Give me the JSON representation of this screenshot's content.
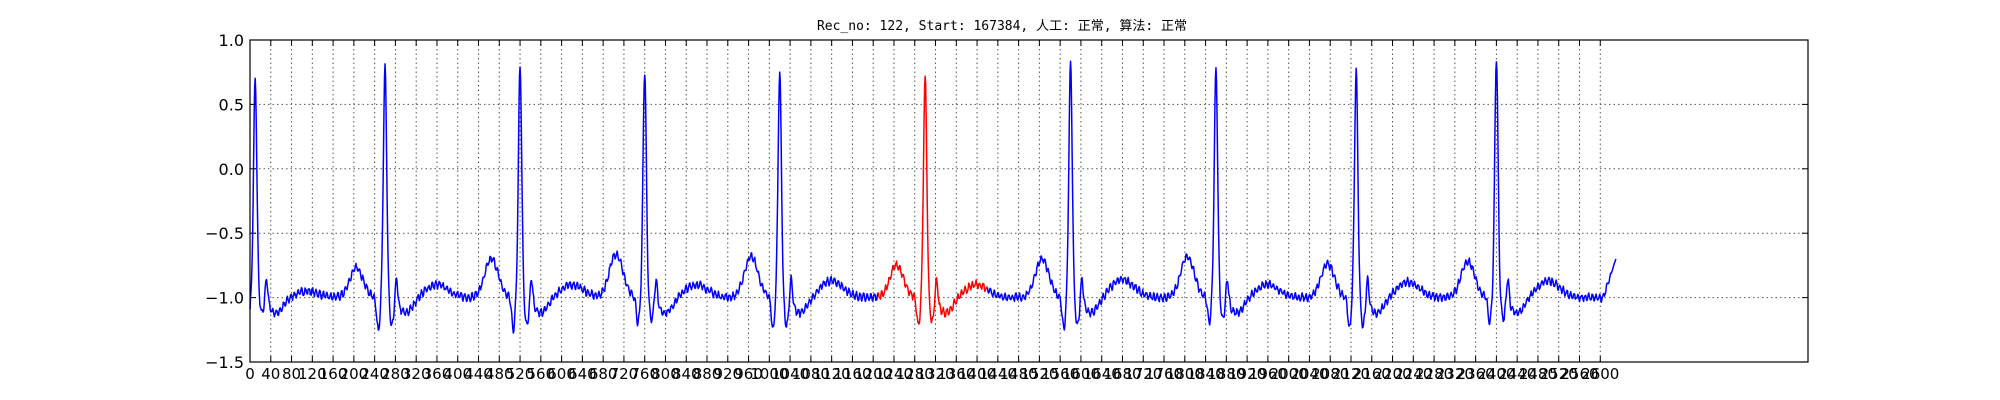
{
  "chart_data": {
    "type": "line",
    "title": "Rec_no: 122, Start: 167384, 人工: 正常, 算法: 正常",
    "xlabel": "",
    "ylabel": "",
    "xlim": [
      0,
      3000
    ],
    "ylim": [
      -1.5,
      1.0
    ],
    "grid": true,
    "yticks": [
      {
        "value": 1.0,
        "label": "1.0"
      },
      {
        "value": 0.5,
        "label": "0.5"
      },
      {
        "value": 0.0,
        "label": "0.0"
      },
      {
        "value": -0.5,
        "label": "−0.5"
      },
      {
        "value": -1.0,
        "label": "−1.0"
      },
      {
        "value": -1.5,
        "label": "−1.5"
      }
    ],
    "xticks": [
      {
        "value": 0,
        "label": "0"
      },
      {
        "value": 40,
        "label": "40"
      },
      {
        "value": 80,
        "label": "80"
      },
      {
        "value": 120,
        "label": "120"
      },
      {
        "value": 160,
        "label": "160"
      },
      {
        "value": 200,
        "label": "200"
      },
      {
        "value": 240,
        "label": "240"
      },
      {
        "value": 280,
        "label": "280"
      },
      {
        "value": 320,
        "label": "320"
      },
      {
        "value": 360,
        "label": "360"
      },
      {
        "value": 400,
        "label": "400"
      },
      {
        "value": 440,
        "label": "440"
      },
      {
        "value": 480,
        "label": "480"
      },
      {
        "value": 520,
        "label": "520"
      },
      {
        "value": 560,
        "label": "560"
      },
      {
        "value": 600,
        "label": "600"
      },
      {
        "value": 640,
        "label": "640"
      },
      {
        "value": 680,
        "label": "680"
      },
      {
        "value": 720,
        "label": "720"
      },
      {
        "value": 760,
        "label": "760"
      },
      {
        "value": 800,
        "label": "800"
      },
      {
        "value": 840,
        "label": "840"
      },
      {
        "value": 880,
        "label": "880"
      },
      {
        "value": 920,
        "label": "920"
      },
      {
        "value": 960,
        "label": "960"
      },
      {
        "value": 1000,
        "label": "1000"
      },
      {
        "value": 1040,
        "label": "1040"
      },
      {
        "value": 1080,
        "label": "1080"
      },
      {
        "value": 1120,
        "label": "1120"
      },
      {
        "value": 1160,
        "label": "1160"
      },
      {
        "value": 1200,
        "label": "1200"
      },
      {
        "value": 1240,
        "label": "1240"
      },
      {
        "value": 1280,
        "label": "1280"
      },
      {
        "value": 1320,
        "label": "1320"
      },
      {
        "value": 1360,
        "label": "1360"
      },
      {
        "value": 1400,
        "label": "1400"
      },
      {
        "value": 1440,
        "label": "1440"
      },
      {
        "value": 1480,
        "label": "1480"
      },
      {
        "value": 1520,
        "label": "1520"
      },
      {
        "value": 1560,
        "label": "1560"
      },
      {
        "value": 1600,
        "label": "1600"
      },
      {
        "value": 1640,
        "label": "1640"
      },
      {
        "value": 1680,
        "label": "1680"
      },
      {
        "value": 1720,
        "label": "1720"
      },
      {
        "value": 1760,
        "label": "1760"
      },
      {
        "value": 1800,
        "label": "1800"
      },
      {
        "value": 1840,
        "label": "1840"
      },
      {
        "value": 1880,
        "label": "1880"
      },
      {
        "value": 1920,
        "label": "1920"
      },
      {
        "value": 1960,
        "label": "1960"
      },
      {
        "value": 2000,
        "label": "2000"
      },
      {
        "value": 2040,
        "label": "2040"
      },
      {
        "value": 2080,
        "label": "2080"
      },
      {
        "value": 2120,
        "label": "2120"
      },
      {
        "value": 2160,
        "label": "2160"
      },
      {
        "value": 2200,
        "label": "2200"
      },
      {
        "value": 2240,
        "label": "2240"
      },
      {
        "value": 2280,
        "label": "2280"
      },
      {
        "value": 2320,
        "label": "2320"
      },
      {
        "value": 2360,
        "label": "2360"
      },
      {
        "value": 2400,
        "label": "2400"
      },
      {
        "value": 2440,
        "label": "2440"
      },
      {
        "value": 2480,
        "label": "2480"
      },
      {
        "value": 2520,
        "label": "2520"
      },
      {
        "value": 2560,
        "label": "2560"
      },
      {
        "value": 2600,
        "label": "2600"
      }
    ],
    "series": [
      {
        "name": "ecg",
        "color": "#0000ff",
        "baseline": -1.0,
        "end_x": 2630,
        "end_y": -0.7,
        "segments": [
          {
            "from": 0,
            "to": 1210,
            "color": "#0000ff"
          },
          {
            "from": 1210,
            "to": 1420,
            "color": "#ff0000"
          },
          {
            "from": 1420,
            "to": 2630,
            "color": "#0000ff"
          }
        ],
        "beats": [
          {
            "r_x": 10,
            "r_y": 0.69,
            "s_y": -1.15,
            "t_y": -0.95,
            "p_y": -1.05
          },
          {
            "r_x": 260,
            "r_y": 0.78,
            "s_y": -1.26,
            "t_y": -0.9,
            "p_y": -0.77
          },
          {
            "r_x": 520,
            "r_y": 0.8,
            "s_y": -1.25,
            "t_y": -0.9,
            "p_y": -0.7
          },
          {
            "r_x": 760,
            "r_y": 0.76,
            "s_y": -1.2,
            "t_y": -0.9,
            "p_y": -0.66
          },
          {
            "r_x": 1020,
            "r_y": 0.75,
            "s_y": -1.25,
            "t_y": -0.87,
            "p_y": -0.68
          },
          {
            "r_x": 1300,
            "r_y": 0.71,
            "s_y": -1.22,
            "t_y": -0.9,
            "p_y": -0.75
          },
          {
            "r_x": 1580,
            "r_y": 0.82,
            "s_y": -1.25,
            "t_y": -0.86,
            "p_y": -0.7
          },
          {
            "r_x": 1860,
            "r_y": 0.78,
            "s_y": -1.2,
            "t_y": -0.9,
            "p_y": -0.68
          },
          {
            "r_x": 2130,
            "r_y": 0.76,
            "s_y": -1.25,
            "t_y": -0.88,
            "p_y": -0.74
          },
          {
            "r_x": 2400,
            "r_y": 0.86,
            "s_y": -1.2,
            "t_y": -0.87,
            "p_y": -0.72
          }
        ]
      }
    ]
  }
}
